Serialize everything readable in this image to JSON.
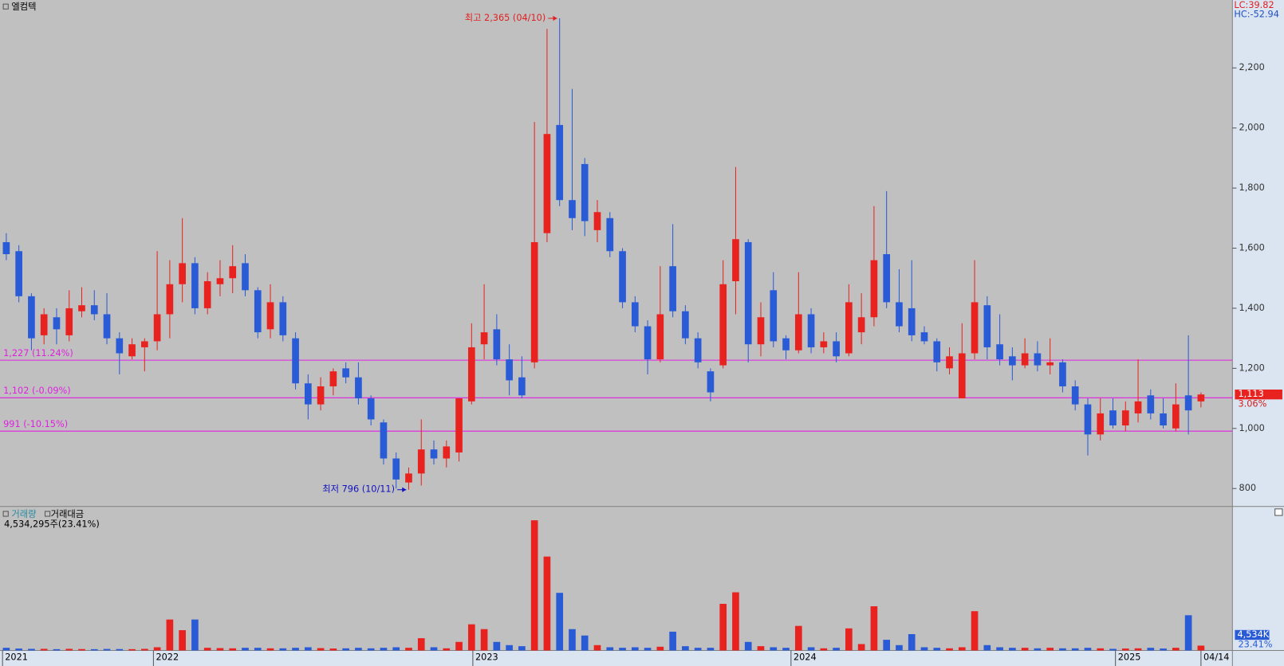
{
  "chart_data": {
    "type": "candlestick",
    "title": "엘컴텍",
    "corner_stats": [
      {
        "text": "LC:39.82",
        "color": "#e02020"
      },
      {
        "text": "HC:-52.94",
        "color": "#2050c0"
      }
    ],
    "up_color": "#e8231f",
    "down_color": "#2a5bd6",
    "xlim": [
      -0.5,
      97.5
    ],
    "xticks": [
      {
        "value": -0.3,
        "label": "2021"
      },
      {
        "value": 11.7,
        "label": "2022"
      },
      {
        "value": 37.1,
        "label": "2023"
      },
      {
        "value": 62.4,
        "label": "2024"
      },
      {
        "value": 88.2,
        "label": "2025"
      },
      {
        "value": 95,
        "label": "04/14"
      }
    ],
    "ylim": [
      743,
      2426
    ],
    "yticks": [
      800,
      {
        "value": 1000,
        "label": "1,000"
      },
      {
        "value": 1200,
        "label": "1,200"
      },
      {
        "value": 1400,
        "label": "1,400"
      },
      {
        "value": 1600,
        "label": "1,600"
      },
      {
        "value": 1800,
        "label": "1,800"
      },
      {
        "value": 2000,
        "label": "2,000"
      },
      {
        "value": 2200,
        "label": "2,200"
      }
    ],
    "open": [
      1620,
      1590,
      1440,
      1310,
      1370,
      1310,
      1390,
      1410,
      1380,
      1300,
      1240,
      1270,
      1290,
      1380,
      1480,
      1550,
      1400,
      1480,
      1500,
      1550,
      1460,
      1330,
      1420,
      1300,
      1150,
      1080,
      1140,
      1200,
      1170,
      1100,
      1020,
      900,
      820,
      850,
      930,
      900,
      920,
      1090,
      1280,
      1330,
      1230,
      1170,
      1220,
      1650,
      2010,
      1760,
      1880,
      1660,
      1700,
      1590,
      1420,
      1340,
      1230,
      1540,
      1390,
      1300,
      1190,
      1210,
      1490,
      1620,
      1280,
      1460,
      1300,
      1260,
      1380,
      1270,
      1290,
      1250,
      1320,
      1370,
      1580,
      1420,
      1400,
      1320,
      1290,
      1200,
      1100,
      1250,
      1410,
      1280,
      1240,
      1210,
      1250,
      1210,
      1220,
      1140,
      1080,
      980,
      1060,
      1010,
      1050,
      1110,
      1050,
      1000,
      1110,
      1090
    ],
    "high": [
      1650,
      1610,
      1450,
      1400,
      1400,
      1460,
      1470,
      1460,
      1450,
      1320,
      1300,
      1300,
      1590,
      1560,
      1700,
      1570,
      1520,
      1560,
      1610,
      1580,
      1470,
      1480,
      1440,
      1320,
      1180,
      1170,
      1200,
      1220,
      1220,
      1110,
      1030,
      920,
      870,
      1030,
      960,
      960,
      1100,
      1350,
      1480,
      1380,
      1280,
      1240,
      2020,
      2330,
      2365,
      2130,
      1900,
      1760,
      1720,
      1600,
      1440,
      1360,
      1540,
      1680,
      1410,
      1320,
      1200,
      1560,
      1870,
      1630,
      1420,
      1520,
      1310,
      1520,
      1400,
      1320,
      1320,
      1480,
      1450,
      1740,
      1790,
      1530,
      1560,
      1340,
      1300,
      1270,
      1350,
      1560,
      1440,
      1380,
      1270,
      1300,
      1290,
      1300,
      1230,
      1160,
      1100,
      1100,
      1100,
      1090,
      1230,
      1130,
      1100,
      1150,
      1310,
      1120
    ],
    "low": [
      1560,
      1420,
      1260,
      1280,
      1280,
      1290,
      1370,
      1360,
      1280,
      1180,
      1230,
      1190,
      1260,
      1300,
      1420,
      1380,
      1380,
      1440,
      1450,
      1440,
      1300,
      1300,
      1290,
      1130,
      1030,
      1060,
      1110,
      1150,
      1080,
      1010,
      880,
      800,
      796,
      810,
      880,
      870,
      890,
      1080,
      1230,
      1210,
      1110,
      1100,
      1200,
      1620,
      1740,
      1660,
      1640,
      1620,
      1570,
      1400,
      1320,
      1180,
      1220,
      1370,
      1280,
      1200,
      1090,
      1200,
      1380,
      1220,
      1240,
      1270,
      1230,
      1250,
      1250,
      1250,
      1220,
      1240,
      1280,
      1340,
      1400,
      1320,
      1290,
      1280,
      1190,
      1180,
      1100,
      1230,
      1230,
      1210,
      1160,
      1200,
      1190,
      1180,
      1120,
      1060,
      910,
      960,
      1000,
      990,
      1020,
      1030,
      1000,
      990,
      980,
      1070
    ],
    "close": [
      1580,
      1440,
      1300,
      1380,
      1330,
      1400,
      1410,
      1380,
      1300,
      1250,
      1280,
      1290,
      1380,
      1480,
      1550,
      1400,
      1490,
      1500,
      1540,
      1460,
      1320,
      1420,
      1310,
      1150,
      1080,
      1140,
      1190,
      1170,
      1100,
      1030,
      900,
      830,
      850,
      930,
      900,
      940,
      1100,
      1270,
      1320,
      1230,
      1160,
      1110,
      1620,
      1980,
      1760,
      1700,
      1690,
      1720,
      1590,
      1420,
      1340,
      1230,
      1380,
      1390,
      1300,
      1220,
      1120,
      1480,
      1630,
      1280,
      1370,
      1290,
      1260,
      1380,
      1270,
      1290,
      1240,
      1420,
      1370,
      1560,
      1420,
      1340,
      1310,
      1290,
      1220,
      1240,
      1250,
      1420,
      1270,
      1230,
      1210,
      1250,
      1210,
      1220,
      1140,
      1080,
      980,
      1050,
      1010,
      1060,
      1090,
      1050,
      1010,
      1080,
      1060,
      1113
    ],
    "reference_lines": [
      {
        "value": 1227,
        "label": "1,227 (11.24%)"
      },
      {
        "value": 1102,
        "label": "1,102 (-0.09%)"
      },
      {
        "value": 991,
        "label": "991 (-10.15%)"
      }
    ],
    "reference_color": "#e020e0",
    "annotations": [
      {
        "text": "최고 2,365 (04/10)",
        "x": 44,
        "y": 2365,
        "color": "#e02020"
      },
      {
        "text": "최저 796 (10/11)",
        "x": 32,
        "y": 796,
        "color": "#1010c0"
      }
    ],
    "last_price": {
      "value": 1113,
      "label": "1,113"
    },
    "change_label": "3.06%",
    "volume_title": "거래량",
    "amount_title": "거래대금",
    "volume_summary": "4,534,295주(23.41%)",
    "volume_ylim": [
      0,
      125000
    ],
    "volume": [
      2500,
      1800,
      1500,
      1500,
      1200,
      1500,
      1300,
      1200,
      1400,
      1300,
      1200,
      1500,
      3000,
      29000,
      19000,
      29000,
      2500,
      2200,
      2000,
      2500,
      2500,
      2000,
      2000,
      2500,
      3000,
      2200,
      1800,
      2000,
      2500,
      2000,
      2500,
      3000,
      2500,
      11500,
      3000,
      2000,
      8000,
      24500,
      20000,
      8000,
      5000,
      4000,
      122000,
      88000,
      54000,
      20000,
      14000,
      5000,
      3000,
      2500,
      3000,
      2500,
      3500,
      17600,
      4000,
      2500,
      2500,
      43700,
      54500,
      8000,
      4000,
      3000,
      2500,
      23000,
      3000,
      2000,
      2500,
      20700,
      6000,
      41400,
      10000,
      5000,
      15300,
      3000,
      2500,
      2000,
      3000,
      36800,
      5000,
      3000,
      2500,
      2500,
      2000,
      2500,
      2000,
      2000,
      2500,
      2000,
      1500,
      1800,
      2000,
      2500,
      1800,
      2500,
      33000,
      4534.295
    ],
    "volume_tag": {
      "value": 4534.295,
      "label": "4,534K"
    },
    "volume_ratio": "23.41%"
  }
}
